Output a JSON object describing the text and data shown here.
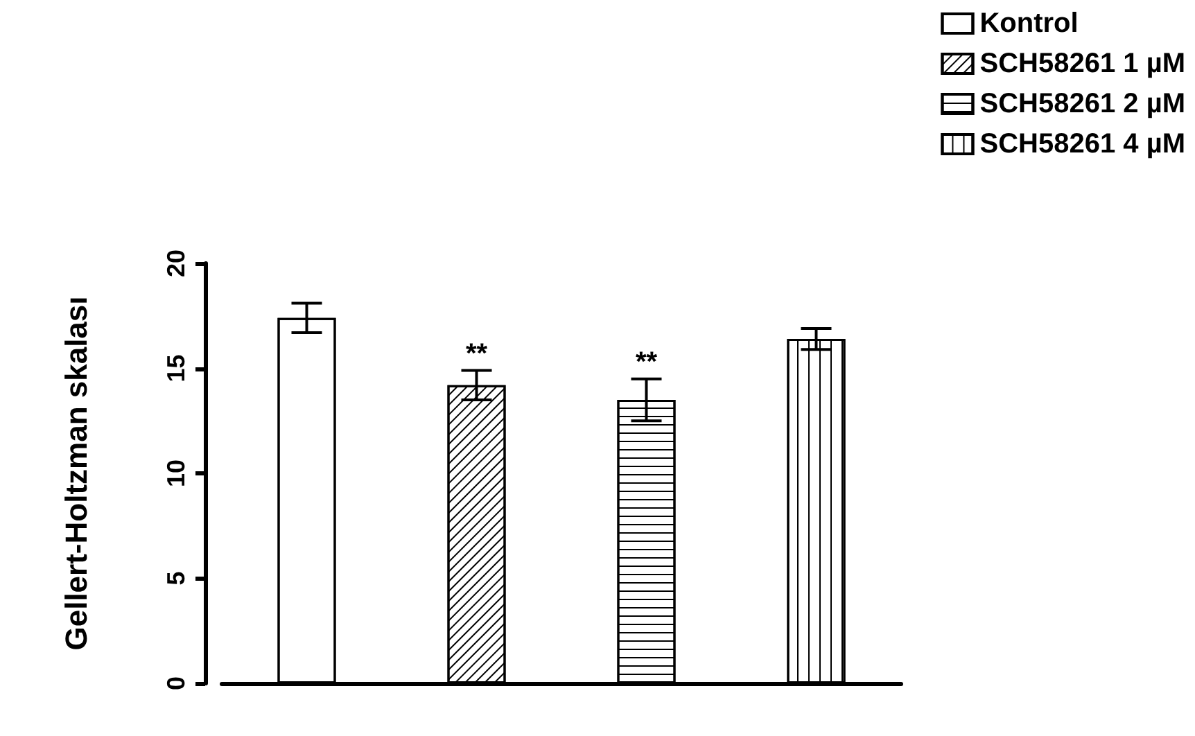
{
  "chart_data": {
    "type": "bar",
    "ylabel": "Gellert-Holtzman skalası",
    "categories": [
      null,
      null,
      null,
      null
    ],
    "series": [
      {
        "name": "Kontrol",
        "color": "#ffffff",
        "values": [
          17.4,
          null,
          null,
          null
        ],
        "errors": [
          0.7,
          null,
          null,
          null
        ]
      },
      {
        "name": "SCH58261 1 µM",
        "color": "#ffffff",
        "values": [
          null,
          14.2,
          null,
          null
        ],
        "errors": [
          null,
          0.7,
          null,
          null
        ],
        "value_labels": [
          null,
          "**",
          null,
          null
        ]
      },
      {
        "name": "SCH58261 2 µM",
        "color": "#ffffff",
        "values": [
          null,
          null,
          13.5,
          null
        ],
        "errors": [
          null,
          null,
          1.0,
          null
        ],
        "value_labels": [
          null,
          null,
          "**",
          null
        ]
      },
      {
        "name": "SCH58261 4 µM",
        "color": "#ffffff",
        "values": [
          null,
          null,
          null,
          16.4
        ],
        "errors": [
          null,
          null,
          null,
          0.5
        ]
      }
    ],
    "ylim": [
      0,
      20
    ],
    "yticks": [
      0,
      5,
      10,
      15,
      20
    ],
    "grid": false,
    "legend": "top right"
  }
}
